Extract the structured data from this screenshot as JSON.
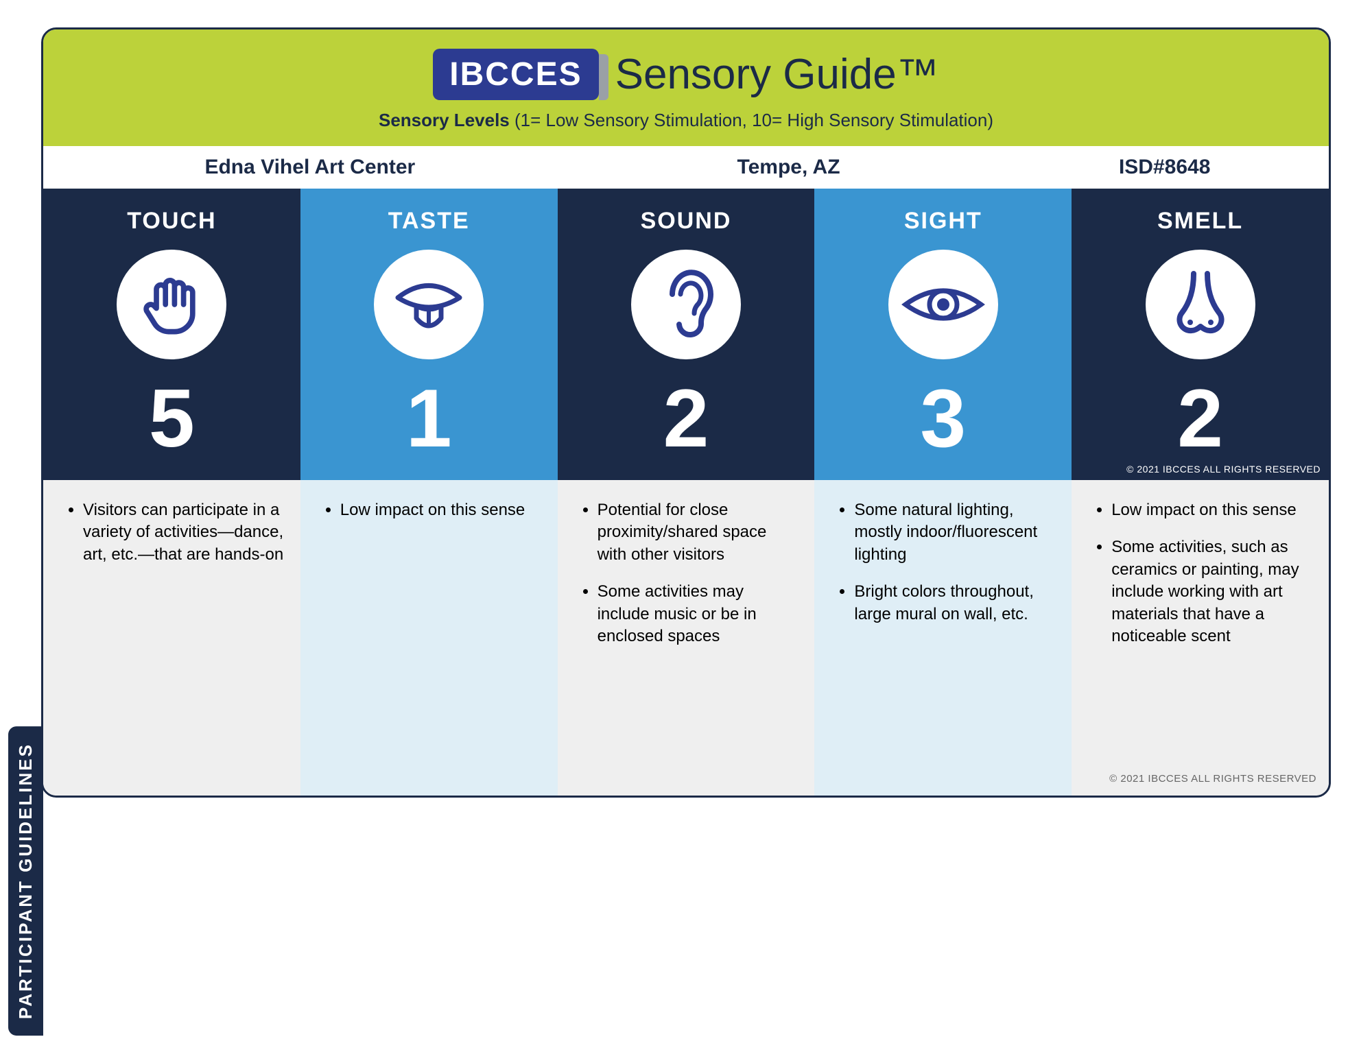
{
  "header": {
    "logo_text": "IBCCES",
    "title": "Sensory Guide™",
    "subtitle_bold": "Sensory Levels",
    "subtitle_rest": " (1= Low Sensory Stimulation, 10= High Sensory Stimulation)"
  },
  "info": {
    "venue": "Edna Vihel Art Center",
    "location": "Tempe, AZ",
    "isd": "ISD#8648"
  },
  "side_tab": "PARTICIPANT GUIDELINES",
  "copyright": "© 2021 IBCCES ALL RIGHTS RESERVED",
  "colors": {
    "dark_navy": "#1b2a47",
    "light_blue": "#3a95d1",
    "bottom_grey": "#efefef",
    "bottom_lightblue": "#dfeef6",
    "icon_stroke": "#2c3b91"
  },
  "senses": [
    {
      "name": "TOUCH",
      "score": "5",
      "icon": "hand",
      "top_bg_key": "dark_navy",
      "bottom_bg_key": "bottom_grey",
      "bullets": [
        "Visitors can participate in a variety of activities—dance, art, etc.—that are hands-on"
      ]
    },
    {
      "name": "TASTE",
      "score": "1",
      "icon": "mouth",
      "top_bg_key": "light_blue",
      "bottom_bg_key": "bottom_lightblue",
      "bullets": [
        "Low impact on this sense"
      ]
    },
    {
      "name": "SOUND",
      "score": "2",
      "icon": "ear",
      "top_bg_key": "dark_navy",
      "bottom_bg_key": "bottom_grey",
      "bullets": [
        "Potential for close proximity/shared space with other visitors",
        "Some activities may include music or be in enclosed spaces"
      ]
    },
    {
      "name": "SIGHT",
      "score": "3",
      "icon": "eye",
      "top_bg_key": "light_blue",
      "bottom_bg_key": "bottom_lightblue",
      "bullets": [
        "Some natural lighting, mostly indoor/fluorescent lighting",
        "Bright colors throughout, large mural on wall, etc."
      ]
    },
    {
      "name": "SMELL",
      "score": "2",
      "icon": "nose",
      "top_bg_key": "dark_navy",
      "bottom_bg_key": "bottom_grey",
      "bullets": [
        "Low impact on this sense",
        "Some activities, such as ceramics or painting, may include working with art materials that have a noticeable scent"
      ]
    }
  ]
}
